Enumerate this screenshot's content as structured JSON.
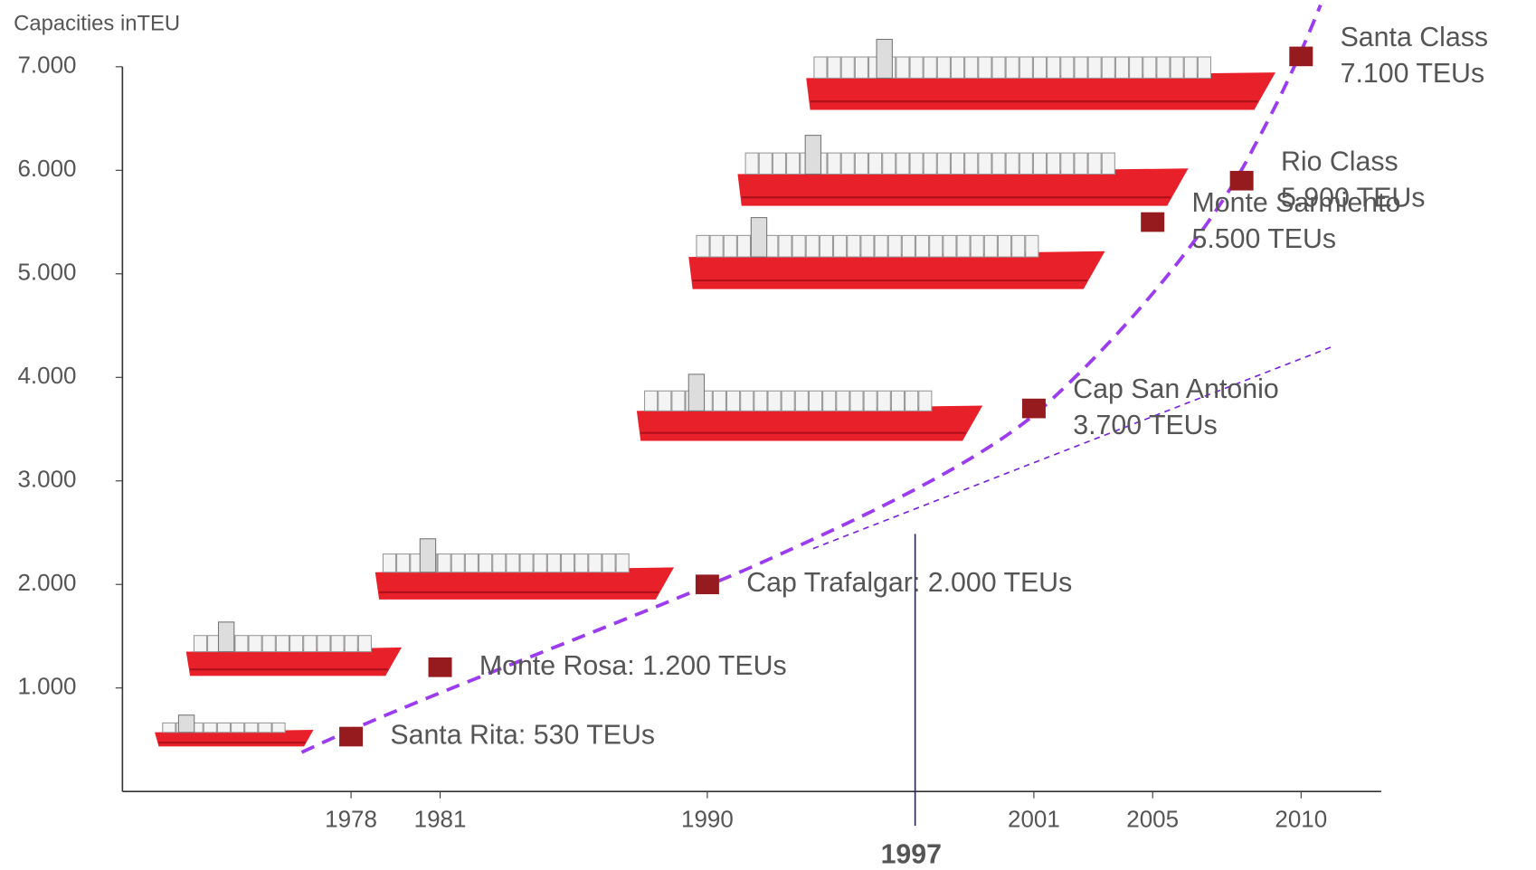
{
  "chart_data": {
    "type": "scatter",
    "y_axis_label": "Capacities inTEU",
    "x": [
      1978,
      1981,
      1990,
      2001,
      2005,
      2008,
      2010
    ],
    "values": [
      530,
      1200,
      2000,
      3700,
      5500,
      5900,
      7100
    ],
    "value_labels": [
      [
        "Santa Rita: 530 TEUs"
      ],
      [
        "Monte Rosa: 1.200 TEUs"
      ],
      [
        "Cap Trafalgar: 2.000 TEUs"
      ],
      [
        "Cap San Antonio",
        "3.700 TEUs"
      ],
      [
        "Monte Sarmiento",
        "5.500 TEUs"
      ],
      [
        "Rio Class",
        "5.900 TEUs"
      ],
      [
        "Santa Class",
        "7.100 TEUs"
      ]
    ],
    "color": "#951b1e",
    "xlim": [
      1970.3,
      2012.7
    ],
    "ylim": [
      0,
      7000
    ],
    "xticks": [
      1978,
      1981,
      1990,
      2001,
      2005,
      2010
    ],
    "yticks": [
      {
        "value": 1000,
        "label": "1.000"
      },
      {
        "value": 2000,
        "label": "2.000"
      },
      {
        "value": 3000,
        "label": "3.000"
      },
      {
        "value": 4000,
        "label": "4.000"
      },
      {
        "value": 5000,
        "label": "5.000"
      },
      {
        "value": 6000,
        "label": "6.000"
      },
      {
        "value": 7000,
        "label": "7.000"
      }
    ],
    "vline": 1997
  }
}
